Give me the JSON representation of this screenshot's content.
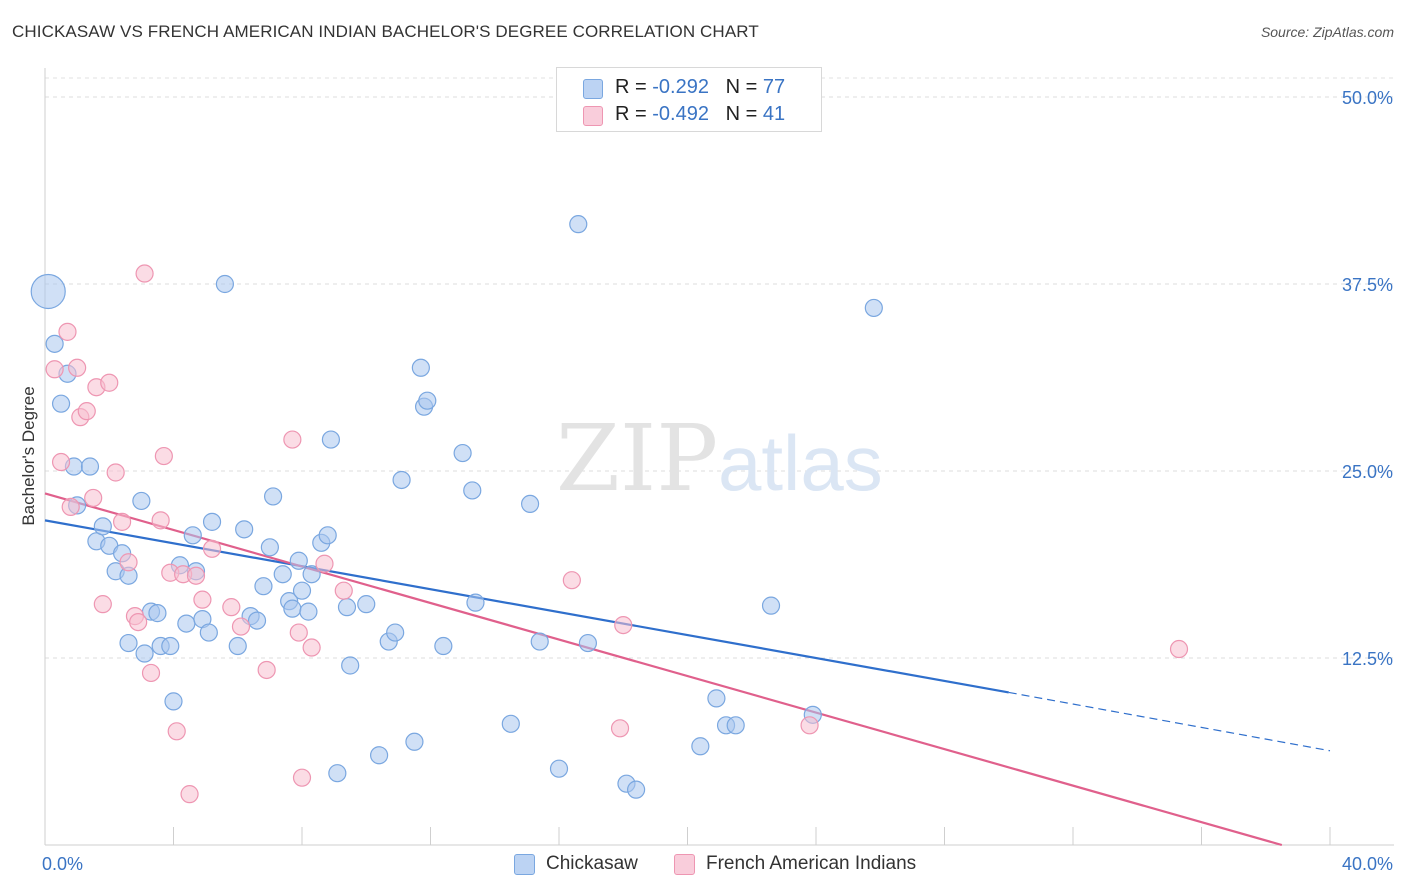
{
  "title": "CHICKASAW VS FRENCH AMERICAN INDIAN BACHELOR'S DEGREE CORRELATION CHART",
  "source": "Source: ZipAtlas.com",
  "watermark": {
    "zip": "ZIP",
    "atlas": "atlas"
  },
  "legend": {
    "rows": [
      {
        "r_label": "R = ",
        "r_value": "-0.292",
        "n_label": "N = ",
        "n_value": "77"
      },
      {
        "r_label": "R = ",
        "r_value": "-0.492",
        "n_label": "N = ",
        "n_value": "41"
      }
    ]
  },
  "chart_data": {
    "type": "scatter",
    "title": "CHICKASAW VS FRENCH AMERICAN INDIAN BACHELOR'S DEGREE CORRELATION CHART",
    "xlabel": "",
    "ylabel": "Bachelor's Degree",
    "xlim": [
      0,
      40
    ],
    "ylim": [
      0,
      50
    ],
    "x_tick_labels": [
      "0.0%",
      "40.0%"
    ],
    "y_ticks": [
      12.5,
      25.0,
      37.5,
      50.0
    ],
    "y_tick_labels": [
      "12.5%",
      "25.0%",
      "37.5%",
      "50.0%"
    ],
    "grid": true,
    "legend_position": "top-center",
    "series": [
      {
        "name": "Chickasaw",
        "color": "#a9c6ef",
        "stroke": "#7aa7e0",
        "r": -0.292,
        "n": 77,
        "trend": {
          "x0": 0,
          "y0": 21.7,
          "x1": 30,
          "y1": 10.2,
          "dash_x1": 40,
          "dash_y1": 6.3,
          "color": "#2f6fcc"
        },
        "points": [
          [
            0.1,
            37.0
          ],
          [
            0.3,
            33.5
          ],
          [
            0.5,
            29.5
          ],
          [
            0.7,
            31.5
          ],
          [
            0.9,
            25.3
          ],
          [
            1.0,
            22.7
          ],
          [
            1.4,
            25.3
          ],
          [
            1.6,
            20.3
          ],
          [
            1.8,
            21.3
          ],
          [
            2.0,
            20.0
          ],
          [
            2.2,
            18.3
          ],
          [
            2.4,
            19.5
          ],
          [
            2.6,
            18.0
          ],
          [
            2.6,
            13.5
          ],
          [
            3.0,
            23.0
          ],
          [
            3.1,
            12.8
          ],
          [
            3.3,
            15.6
          ],
          [
            3.5,
            15.5
          ],
          [
            3.6,
            13.3
          ],
          [
            3.9,
            13.3
          ],
          [
            4.0,
            9.6
          ],
          [
            4.2,
            18.7
          ],
          [
            4.4,
            14.8
          ],
          [
            4.6,
            20.7
          ],
          [
            4.7,
            18.3
          ],
          [
            4.9,
            15.1
          ],
          [
            5.1,
            14.2
          ],
          [
            5.2,
            21.6
          ],
          [
            5.6,
            37.5
          ],
          [
            6.0,
            13.3
          ],
          [
            6.2,
            21.1
          ],
          [
            6.4,
            15.3
          ],
          [
            6.6,
            15.0
          ],
          [
            6.8,
            17.3
          ],
          [
            7.1,
            23.3
          ],
          [
            7.0,
            19.9
          ],
          [
            7.4,
            18.1
          ],
          [
            7.6,
            16.3
          ],
          [
            7.7,
            15.8
          ],
          [
            7.9,
            19.0
          ],
          [
            8.0,
            17.0
          ],
          [
            8.2,
            15.6
          ],
          [
            8.3,
            18.1
          ],
          [
            8.6,
            20.2
          ],
          [
            8.8,
            20.7
          ],
          [
            8.9,
            27.1
          ],
          [
            9.1,
            4.8
          ],
          [
            9.4,
            15.9
          ],
          [
            9.5,
            12.0
          ],
          [
            10.0,
            16.1
          ],
          [
            10.4,
            6.0
          ],
          [
            10.7,
            13.6
          ],
          [
            10.9,
            14.2
          ],
          [
            11.1,
            24.4
          ],
          [
            11.5,
            6.9
          ],
          [
            11.7,
            31.9
          ],
          [
            11.8,
            29.3
          ],
          [
            11.9,
            29.7
          ],
          [
            12.4,
            13.3
          ],
          [
            13.0,
            26.2
          ],
          [
            13.3,
            23.7
          ],
          [
            13.4,
            16.2
          ],
          [
            14.5,
            8.1
          ],
          [
            15.1,
            22.8
          ],
          [
            15.4,
            13.6
          ],
          [
            16.0,
            5.1
          ],
          [
            16.6,
            41.5
          ],
          [
            16.9,
            13.5
          ],
          [
            18.1,
            4.1
          ],
          [
            18.4,
            3.7
          ],
          [
            20.4,
            6.6
          ],
          [
            21.2,
            8.0
          ],
          [
            21.5,
            8.0
          ],
          [
            22.6,
            16.0
          ],
          [
            23.9,
            8.7
          ],
          [
            25.8,
            35.9
          ],
          [
            20.9,
            9.8
          ]
        ]
      },
      {
        "name": "French American Indians",
        "color": "#f7bfd0",
        "stroke": "#ee96b2",
        "r": -0.492,
        "n": 41,
        "trend": {
          "x0": 0,
          "y0": 23.5,
          "x1": 38.5,
          "y1": 0.0,
          "color": "#e0608c"
        },
        "points": [
          [
            0.3,
            31.8
          ],
          [
            0.5,
            25.6
          ],
          [
            0.7,
            34.3
          ],
          [
            0.8,
            22.6
          ],
          [
            1.0,
            31.9
          ],
          [
            1.1,
            28.6
          ],
          [
            1.3,
            29.0
          ],
          [
            1.5,
            23.2
          ],
          [
            1.6,
            30.6
          ],
          [
            1.8,
            16.1
          ],
          [
            2.0,
            30.9
          ],
          [
            2.2,
            24.9
          ],
          [
            2.4,
            21.6
          ],
          [
            2.6,
            18.9
          ],
          [
            2.8,
            15.3
          ],
          [
            2.9,
            14.9
          ],
          [
            3.1,
            38.2
          ],
          [
            3.3,
            11.5
          ],
          [
            3.6,
            21.7
          ],
          [
            3.7,
            26.0
          ],
          [
            3.9,
            18.2
          ],
          [
            4.1,
            7.6
          ],
          [
            4.3,
            18.1
          ],
          [
            4.5,
            3.4
          ],
          [
            4.7,
            18.0
          ],
          [
            4.9,
            16.4
          ],
          [
            5.2,
            19.8
          ],
          [
            5.8,
            15.9
          ],
          [
            6.1,
            14.6
          ],
          [
            6.9,
            11.7
          ],
          [
            7.7,
            27.1
          ],
          [
            7.9,
            14.2
          ],
          [
            8.0,
            4.5
          ],
          [
            8.3,
            13.2
          ],
          [
            8.7,
            18.8
          ],
          [
            9.3,
            17.0
          ],
          [
            16.4,
            17.7
          ],
          [
            17.9,
            7.8
          ],
          [
            18.0,
            14.7
          ],
          [
            23.8,
            8.0
          ],
          [
            35.3,
            13.1
          ]
        ]
      }
    ]
  }
}
